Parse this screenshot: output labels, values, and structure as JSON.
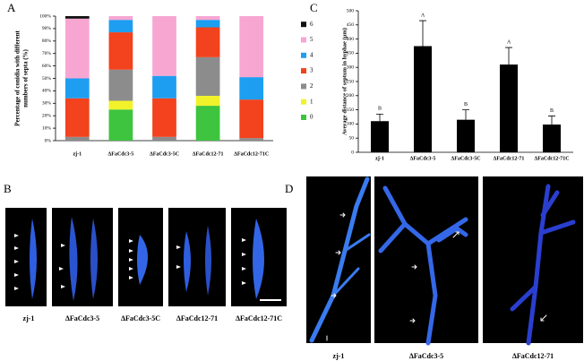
{
  "panel_labels": [
    "A",
    "B",
    "C",
    "D"
  ],
  "captions_b": [
    "zj-1",
    "ΔFaCdc3-5",
    "ΔFaCdc3-5C",
    "ΔFaCdc12-71",
    "ΔFaCdc12-71C"
  ],
  "captions_d": [
    "zj-1",
    "ΔFaCdc3-5",
    "ΔFaCdc12-71"
  ],
  "chart_data": [
    {
      "type": "stacked_bar",
      "y_label": [
        "Percentage of conidia with different",
        "numbers of septa (%)"
      ],
      "categories": [
        "zj-1",
        "ΔFaCdc3-5",
        "ΔFaCdc3-5C",
        "ΔFaCdc12-71",
        "ΔFaCdc12-71C"
      ],
      "series": [
        {
          "name": "0",
          "color": "#3ec43e",
          "values": [
            0,
            25,
            0,
            28,
            0
          ]
        },
        {
          "name": "1",
          "color": "#f2f22a",
          "values": [
            0,
            7,
            0,
            8,
            0
          ]
        },
        {
          "name": "2",
          "color": "#8c8c8c",
          "values": [
            3,
            25,
            3,
            31,
            2
          ]
        },
        {
          "name": "3",
          "color": "#f2421e",
          "values": [
            31,
            30,
            31,
            24,
            31
          ]
        },
        {
          "name": "4",
          "color": "#1e9ef0",
          "values": [
            16,
            10,
            18,
            6,
            18
          ]
        },
        {
          "name": "5",
          "color": "#f7a6d2",
          "values": [
            48,
            3,
            48,
            3,
            49
          ]
        },
        {
          "name": "6",
          "color": "#111111",
          "values": [
            2,
            0,
            0,
            0,
            0
          ]
        }
      ],
      "ylim": [
        0,
        100
      ],
      "yticks": [
        {
          "value": 0,
          "label": "0%"
        },
        {
          "value": 10,
          "label": "10%"
        },
        {
          "value": 20,
          "label": "20%"
        },
        {
          "value": 30,
          "label": "30%"
        },
        {
          "value": 40,
          "label": "40%"
        },
        {
          "value": 50,
          "label": "50%"
        },
        {
          "value": 60,
          "label": "60%"
        },
        {
          "value": 70,
          "label": "70%"
        },
        {
          "value": 80,
          "label": "80%"
        },
        {
          "value": 90,
          "label": "90%"
        },
        {
          "value": 100,
          "label": "100%"
        }
      ]
    },
    {
      "type": "bar",
      "y_label": "Average distance of septum in hyphae (μm)",
      "categories": [
        "zj-1",
        "ΔFaCdc3-5",
        "ΔFaCdc3-5C",
        "ΔFaCdc12-71",
        "ΔFaCdc12-71C"
      ],
      "values": [
        110,
        375,
        115,
        310,
        98
      ],
      "errors": [
        25,
        90,
        35,
        60,
        30
      ],
      "annotations": [
        "B",
        "A",
        "B",
        "A",
        "B"
      ],
      "color": "#000000",
      "ylim": [
        0,
        500
      ],
      "yticks": [
        0,
        50,
        100,
        150,
        200,
        250,
        300,
        350,
        400,
        450,
        500
      ]
    }
  ]
}
